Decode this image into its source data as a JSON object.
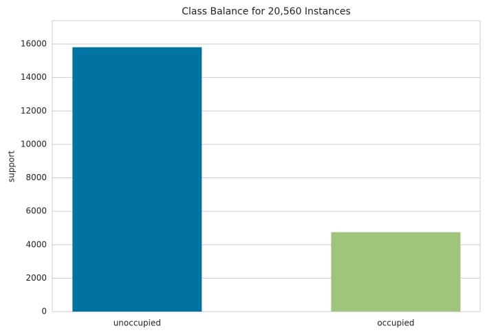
{
  "chart_data": {
    "type": "bar",
    "title": "Class Balance for 20,560 Instances",
    "ylabel": "support",
    "categories": [
      "unoccupied",
      "occupied"
    ],
    "values": [
      15810,
      4750
    ],
    "colors": [
      "#0173a3",
      "#9ec57a"
    ],
    "ylim": [
      0,
      17400
    ],
    "yticks": [
      0,
      2000,
      4000,
      6000,
      8000,
      10000,
      12000,
      14000,
      16000
    ],
    "grid": true
  }
}
